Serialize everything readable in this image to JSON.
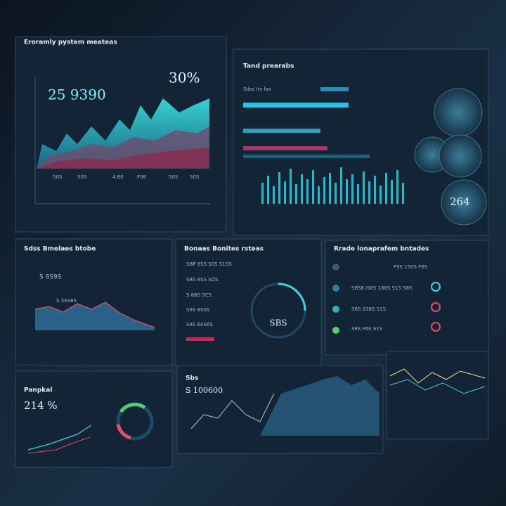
{
  "panels": [
    {
      "title": "Eroramly pystem meateas",
      "percent": "30%",
      "value": "25 9390",
      "labels": [
        "S0S",
        "S0S",
        "4.60",
        "F08",
        "S0S",
        "S0S"
      ]
    },
    {
      "title": "Tand prearabs",
      "subtitle": "Sdss Irs fas",
      "value": "264"
    },
    {
      "title": "Sdss Bmelaes btobe",
      "value": "S 8S9S",
      "subtitle": "S 3SS8S"
    },
    {
      "title": "Bonaas Bonites rsteas",
      "value": "SBS",
      "rows": [
        "SBP 8SS S0S S1SS",
        "S8S 8SS SOS",
        "S 88S SCS",
        "S6S 8S0S",
        "S8S 60S6S"
      ]
    },
    {
      "title": "Rrade lonaprafem bntades",
      "rows": [
        "F9S   1S0S   F6S",
        "S8S8 IS8S   188S   S1S S8S",
        "S6S   1S8S   S1S",
        "S8S   F6S   S1S"
      ]
    },
    {
      "title": "Panpkal",
      "value": "214 %"
    },
    {
      "title": "Sbs",
      "value": "S 100600"
    }
  ]
}
